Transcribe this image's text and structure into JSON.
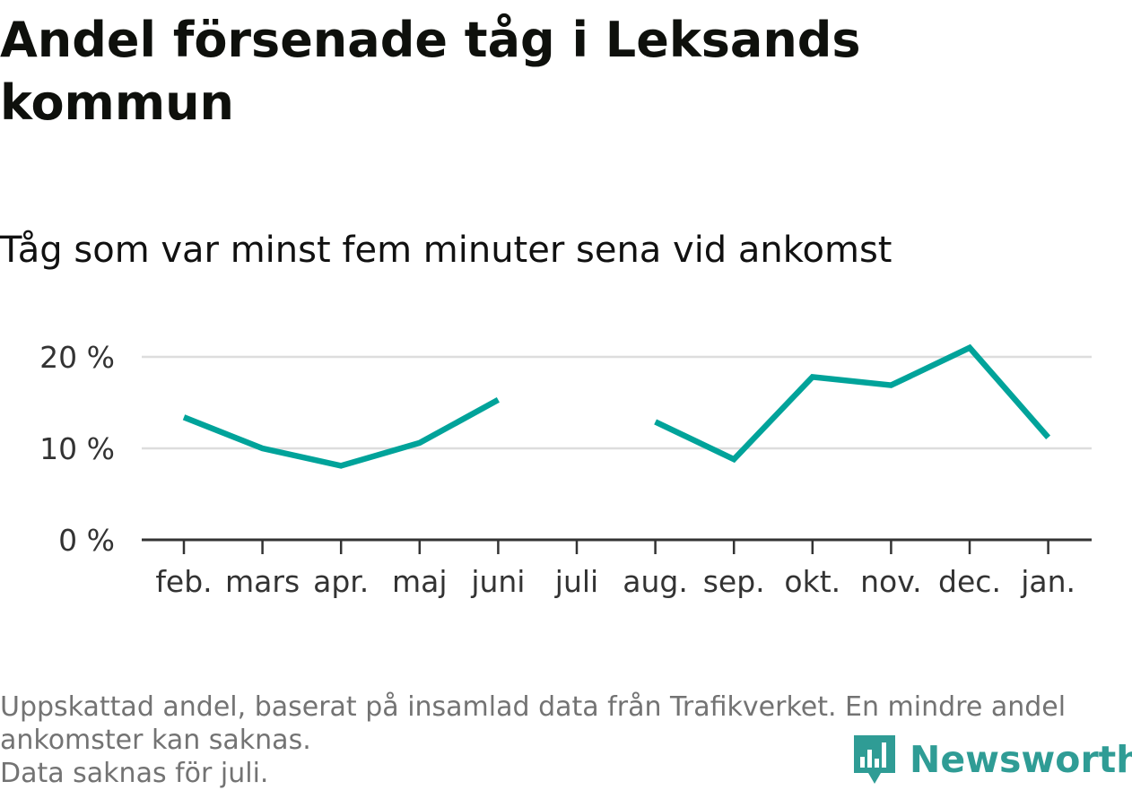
{
  "title": "Andel försenade tåg i Leksands kommun",
  "subtitle": "Tåg som var minst fem minuter sena vid ankomst",
  "footnote": {
    "line1": "Uppskattad andel, baserat på insamlad data från Trafikverket. En mindre andel",
    "line2": "ankomster kan saknas.",
    "line3": "Data saknas för juli."
  },
  "brand": {
    "name": "Newsworthy",
    "color": "#2f9c95",
    "icon": "bar-chart-speech-bubble-icon"
  },
  "colors": {
    "line": "#00a39a",
    "gridline": "#dddddd",
    "axis": "#333333"
  },
  "chart_data": {
    "type": "line",
    "title": "Andel försenade tåg i Leksands kommun",
    "subtitle": "Tåg som var minst fem minuter sena vid ankomst",
    "xlabel": "",
    "ylabel": "",
    "categories": [
      "feb.",
      "mars",
      "apr.",
      "maj",
      "juni",
      "juli",
      "aug.",
      "sep.",
      "okt.",
      "nov.",
      "dec.",
      "jan."
    ],
    "series": [
      {
        "values": [
          13.4,
          10.0,
          8.1,
          10.6,
          15.3,
          null,
          12.9,
          8.8,
          17.8,
          16.9,
          21.0,
          11.2
        ]
      }
    ],
    "yticks": [
      0,
      10,
      20
    ],
    "ytick_labels": [
      "0 %",
      "10 %",
      "20 %"
    ],
    "ylim": [
      0,
      22.5
    ],
    "grid": true,
    "legend": "none"
  }
}
